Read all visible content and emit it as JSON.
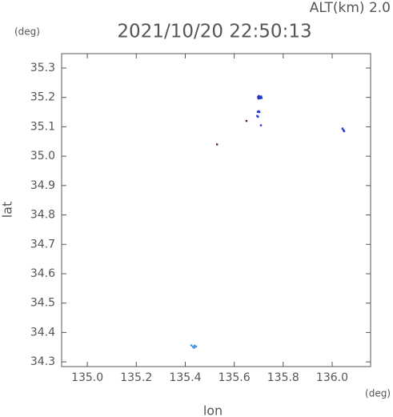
{
  "chart_data": {
    "type": "scatter",
    "title": "2021/10/20 22:50:13",
    "annotation": "ALT(km) 2.0",
    "y_unit": "(deg)",
    "x_unit": "(deg)",
    "x_label": "lon",
    "y_label": "lat",
    "xlim": [
      134.895,
      136.157
    ],
    "ylim": [
      34.284,
      35.349
    ],
    "xticks": [
      {
        "value": 135.0,
        "label": "135.0"
      },
      {
        "value": 135.2,
        "label": "135.2"
      },
      {
        "value": 135.4,
        "label": "135.4"
      },
      {
        "value": 135.6,
        "label": "135.6"
      },
      {
        "value": 135.8,
        "label": "135.8"
      },
      {
        "value": 136.0,
        "label": "136.0"
      }
    ],
    "yticks": [
      {
        "value": 34.3,
        "label": "34.3"
      },
      34.4,
      34.5,
      34.6,
      34.7,
      34.8,
      34.9,
      {
        "value": 35.0,
        "label": "35.0"
      },
      35.1,
      35.2,
      35.3
    ],
    "series": [
      {
        "color": "#2638d6",
        "x": [
          135.697,
          135.7,
          135.703,
          135.706,
          135.709,
          135.712,
          135.699,
          135.705,
          135.71,
          135.701,
          135.696,
          135.7,
          135.703,
          135.694,
          135.697,
          135.709,
          136.042,
          136.046,
          136.049
        ],
        "y": [
          35.201,
          35.203,
          35.199,
          35.202,
          35.2,
          35.198,
          35.196,
          35.197,
          35.203,
          35.205,
          35.151,
          35.153,
          35.15,
          35.137,
          35.134,
          35.105,
          35.094,
          35.089,
          35.085
        ]
      },
      {
        "color": "#3a8ee0",
        "x": [
          135.425,
          135.432,
          135.438,
          135.444,
          135.436
        ],
        "y": [
          34.356,
          34.351,
          34.355,
          34.352,
          34.348
        ]
      },
      {
        "color": "#5a2030",
        "x": [
          135.65,
          135.53
        ],
        "y": [
          35.12,
          35.04
        ]
      }
    ]
  }
}
